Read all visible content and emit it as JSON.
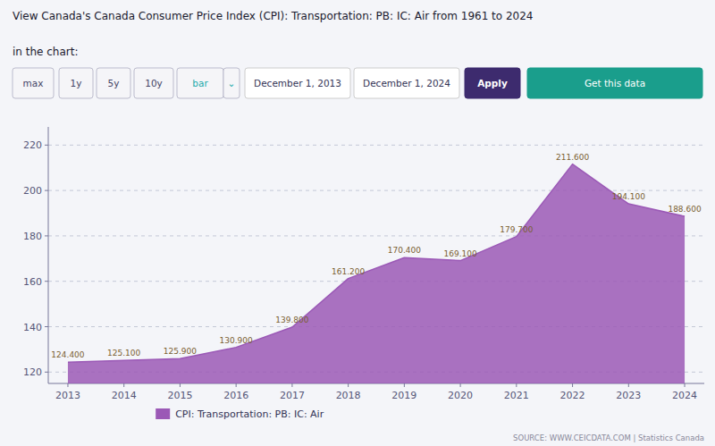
{
  "chart_data": {
    "type": "area",
    "title": "View Canada's Canada Consumer Price Index (CPI): Transportation: PB: IC: Air from 1961 to 2024",
    "subtitle": "in the chart:",
    "annotations": [
      "max",
      "1y",
      "5y",
      "10y",
      "bar",
      "⌄",
      "December 1, 2013",
      "December 1, 2024",
      "Apply",
      "Get this data",
      "SOURCE: WWW.CEICDATA.COM | Statistics Canada"
    ],
    "x": [
      2013,
      2014,
      2015,
      2016,
      2017,
      2018,
      2019,
      2020,
      2021,
      2022,
      2023,
      2024
    ],
    "xlim": [
      2012.65,
      2024.35
    ],
    "xticks": [
      2013,
      2014,
      2015,
      2016,
      2017,
      2018,
      2019,
      2020,
      2021,
      2022,
      2023,
      2024
    ],
    "ylim": [
      115,
      228
    ],
    "yticks": [
      120,
      140,
      160,
      180,
      200,
      220
    ],
    "grid": true,
    "legend": "bottom",
    "data_labels": true,
    "series": [
      {
        "name": "CPI: Transportation: PB: IC: Air",
        "color": "#9b59b6",
        "values": [
          124.4,
          125.1,
          125.9,
          130.9,
          139.8,
          161.2,
          170.4,
          169.1,
          179.7,
          211.6,
          194.1,
          188.6
        ],
        "value_labels": [
          "124.400",
          "125.100",
          "125.900",
          "130.900",
          "139.800",
          "161.200",
          "170.400",
          "169.100",
          "179.700",
          "211.600",
          "194.100",
          "188.600"
        ]
      }
    ]
  }
}
